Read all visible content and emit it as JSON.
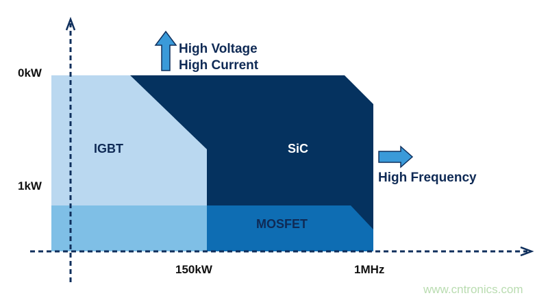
{
  "labels": {
    "y_top": "0kW",
    "y_mid": "1kW",
    "x_mid": "150kW",
    "x_right": "1MHz",
    "up_arrow_line1": "High Voltage",
    "up_arrow_line2": "High Current",
    "right_arrow": "High Frequency",
    "region_igbt": "IGBT",
    "region_sic": "SiC",
    "region_mosfet": "MOSFET",
    "watermark": "www.cntronics.com"
  },
  "colors": {
    "igbt": "#bad8f0",
    "low_band": "#7fbfe6",
    "sic": "#05325f",
    "mosfet": "#0e6db3",
    "axis": "#0f2f5c",
    "arrow_fill": "#3a9ad9",
    "text": "#0f2a55",
    "watermark": "#b9dcb0"
  }
}
